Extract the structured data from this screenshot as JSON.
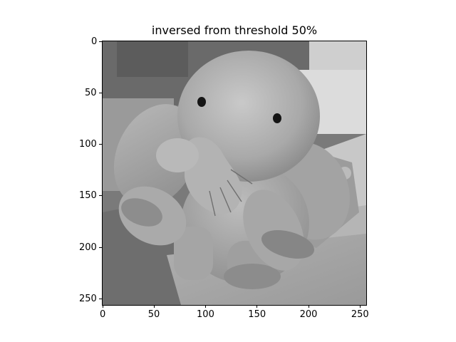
{
  "chart_data": {
    "type": "image",
    "title": "inversed from threshold 50%",
    "image_description_colormap": "gray",
    "extent": {
      "x": [
        0,
        256
      ],
      "y": [
        256,
        0
      ]
    },
    "xticks": [
      0,
      50,
      100,
      150,
      200,
      250
    ],
    "yticks": [
      0,
      50,
      100,
      150,
      200,
      250
    ],
    "xlabel": "",
    "ylabel": "",
    "grid": false
  }
}
